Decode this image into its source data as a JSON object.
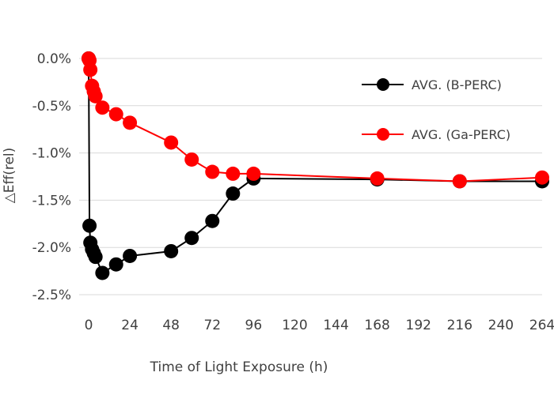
{
  "chart_data": {
    "type": "line",
    "xlabel": "Time of Light Exposure (h)",
    "ylabel": "△Eff(rel)",
    "x_ticks": [
      "0",
      "24",
      "48",
      "72",
      "96",
      "120",
      "144",
      "168",
      "192",
      "216",
      "240",
      "264"
    ],
    "x_tick_values": [
      0,
      24,
      48,
      72,
      96,
      120,
      144,
      168,
      192,
      216,
      240,
      264
    ],
    "y_ticks": [
      "0.0%",
      "-0.5%",
      "-1.0%",
      "-1.5%",
      "-2.0%",
      "-2.5%"
    ],
    "y_tick_values": [
      0.0,
      -0.5,
      -1.0,
      -1.5,
      -2.0,
      -2.5
    ],
    "xlim": [
      0,
      264
    ],
    "ylim": [
      -2.5,
      0.0
    ],
    "grid": "horizontal",
    "legend_position": "top-right",
    "series": [
      {
        "name": "AVG. (B-PERC)",
        "color": "#000000",
        "x": [
          0,
          0.5,
          1,
          2,
          3,
          4,
          8,
          16,
          24,
          48,
          60,
          72,
          84,
          96,
          168,
          216,
          264
        ],
        "y": [
          0.0,
          -1.77,
          -1.95,
          -2.02,
          -2.06,
          -2.1,
          -2.27,
          -2.18,
          -2.09,
          -2.04,
          -1.9,
          -1.72,
          -1.43,
          -1.27,
          -1.28,
          -1.3,
          -1.3
        ]
      },
      {
        "name": "AVG. (Ga-PERC)",
        "color": "#ff0000",
        "x": [
          0,
          0.5,
          1,
          2,
          3,
          4,
          8,
          16,
          24,
          48,
          60,
          72,
          84,
          96,
          168,
          216,
          264
        ],
        "y": [
          0.0,
          -0.02,
          -0.12,
          -0.29,
          -0.35,
          -0.4,
          -0.52,
          -0.59,
          -0.68,
          -0.89,
          -1.07,
          -1.2,
          -1.22,
          -1.22,
          -1.27,
          -1.3,
          -1.26
        ]
      }
    ]
  }
}
